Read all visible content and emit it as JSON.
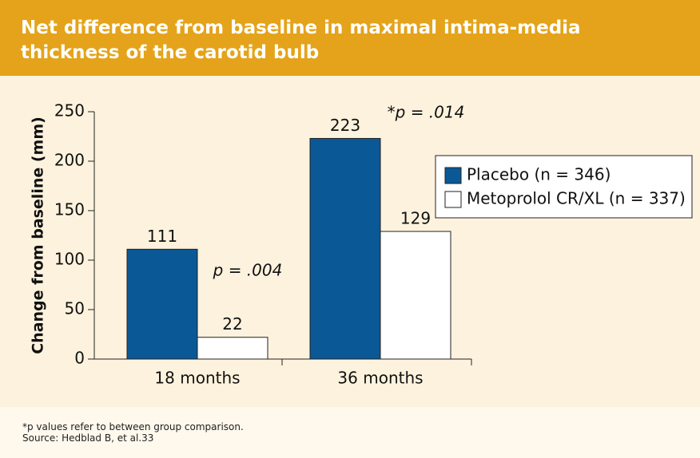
{
  "chart_data": {
    "type": "bar",
    "title": "Net difference from baseline in maximal intima-media thickness of the carotid bulb",
    "y_label": "Change from baseline (mm)",
    "categories": [
      "18 months",
      "36 months"
    ],
    "series": [
      {
        "name": "Placebo (n = 346)",
        "color": "#0b5896",
        "values": [
          111,
          223
        ]
      },
      {
        "name": "Metoprolol CR/XL (n = 337)",
        "color": "#ffffff",
        "values": [
          22,
          129
        ]
      }
    ],
    "annotations": [
      "p = .004",
      "*p = .014"
    ],
    "ylim": [
      0,
      250
    ],
    "yticks": [
      0,
      50,
      100,
      150,
      200,
      250
    ],
    "footnote": "*p values refer to between group comparison.",
    "source": "Source: Hedblad B, et al.33"
  }
}
